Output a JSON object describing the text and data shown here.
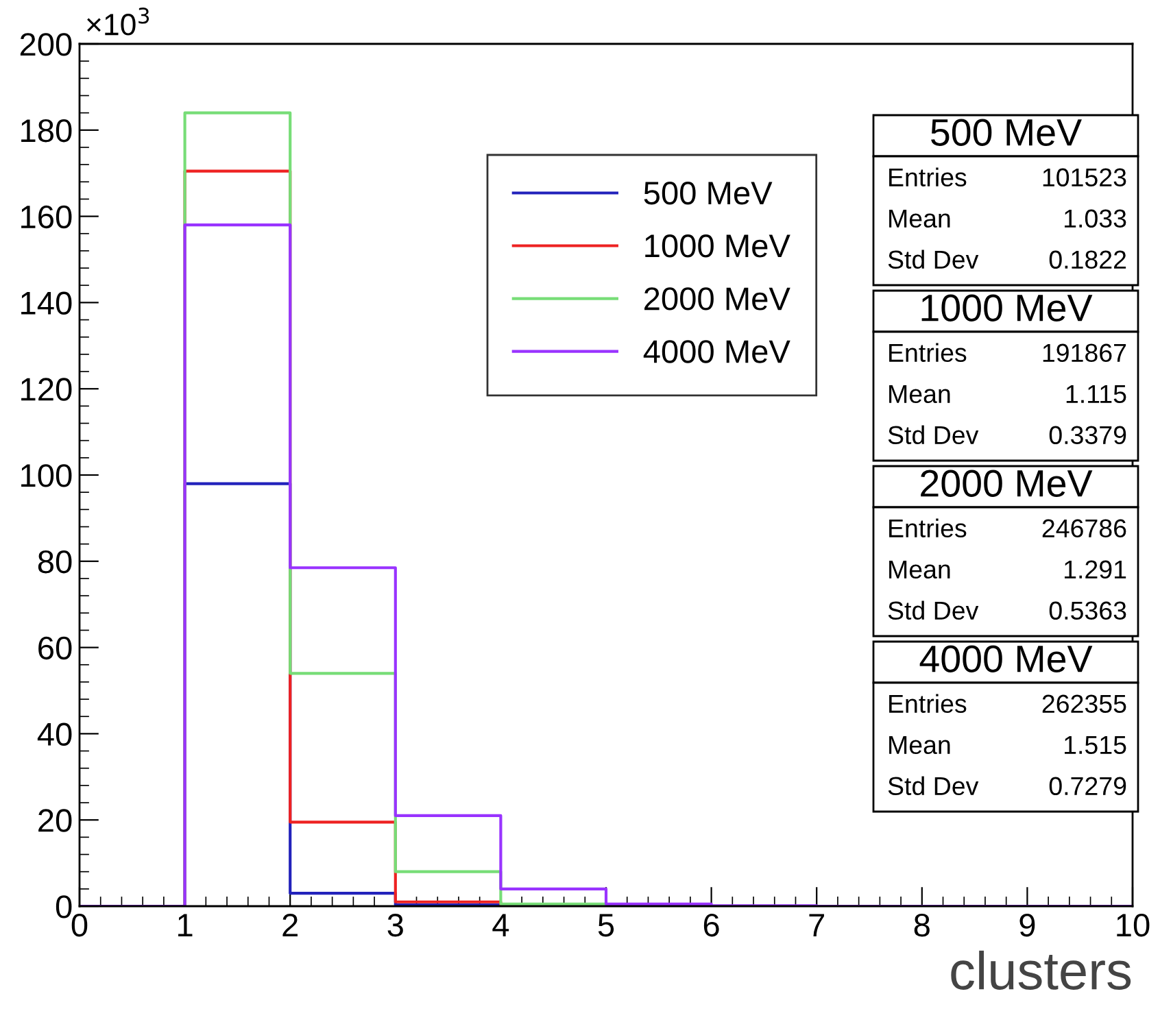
{
  "chart_data": {
    "type": "histogram",
    "xlabel": "clusters",
    "bins": [
      0,
      1,
      2,
      3,
      4,
      5,
      6,
      7,
      8,
      9,
      10
    ],
    "series": [
      {
        "name": "500 MeV",
        "color": "#2222bb",
        "values": [
          0,
          98,
          3,
          0.3,
          0,
          0,
          0,
          0,
          0,
          0
        ]
      },
      {
        "name": "1000 MeV",
        "color": "#ee2222",
        "values": [
          0,
          170.5,
          19.5,
          1,
          0.2,
          0,
          0,
          0,
          0,
          0
        ]
      },
      {
        "name": "2000 MeV",
        "color": "#77dd77",
        "values": [
          0,
          184,
          54,
          8,
          0.5,
          0.1,
          0,
          0,
          0,
          0
        ]
      },
      {
        "name": "4000 MeV",
        "color": "#9933ff",
        "values": [
          0,
          158,
          78.5,
          21,
          4,
          0.5,
          0.1,
          0,
          0,
          0
        ]
      }
    ],
    "xlim": [
      0,
      10
    ],
    "xticks": [
      0,
      1,
      2,
      3,
      4,
      5,
      6,
      7,
      8,
      9,
      10
    ],
    "ylim": [
      0,
      200
    ],
    "yticks": [
      0,
      20,
      40,
      60,
      80,
      100,
      120,
      140,
      160,
      180,
      200
    ],
    "grid": false,
    "legend": "top",
    "annotations": [
      "×10$^{3}$",
      "500 MeV",
      "Entries",
      "101523",
      "Mean",
      "1.033",
      "Std Dev",
      "0.1822",
      "1000 MeV",
      "Entries",
      "191867",
      "Mean",
      "1.115",
      "Std Dev",
      "0.3379",
      "2000 MeV",
      "Entries",
      "246786",
      "Mean",
      "1.291",
      "Std Dev",
      "0.5363",
      "4000 MeV",
      "Entries",
      "262355",
      "Mean",
      "1.515",
      "Std Dev",
      "0.7279"
    ]
  }
}
